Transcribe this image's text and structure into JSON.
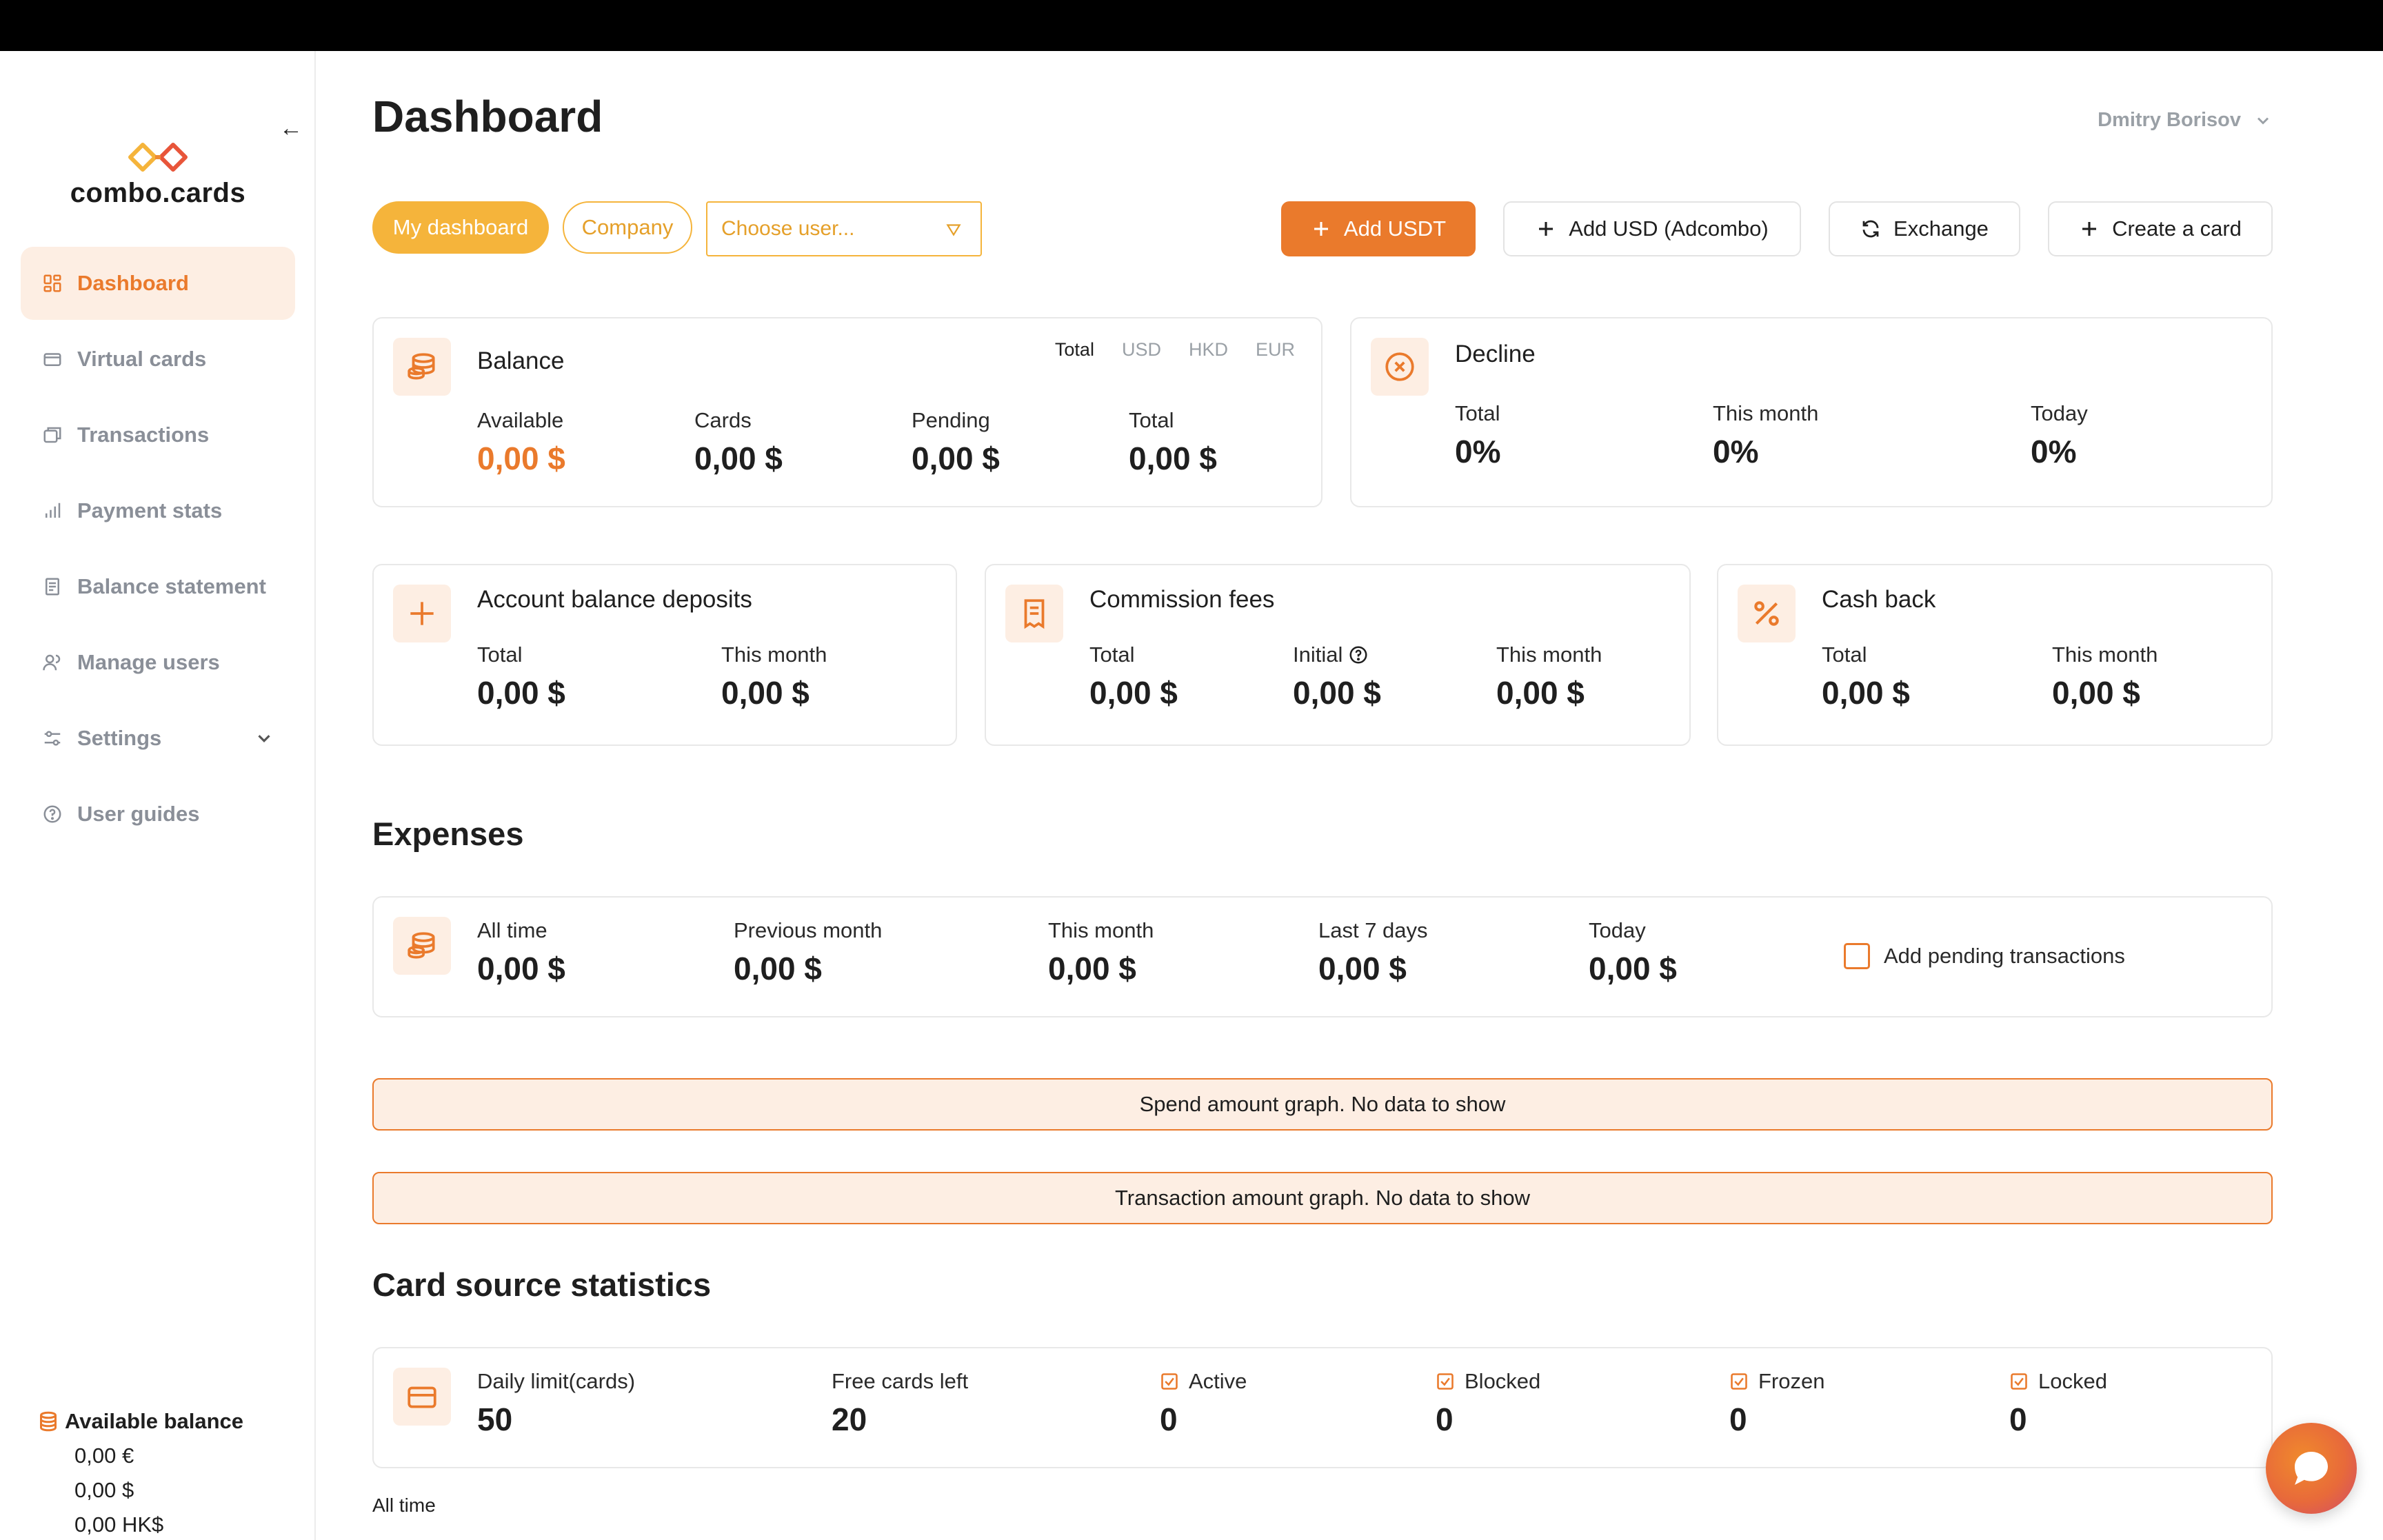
{
  "app": {
    "brand": "combo.cards",
    "page_title": "Dashboard",
    "user_name": "Dmitry Borisov",
    "accent": "#ea7a2c",
    "accent_light": "#fdeee3",
    "accent_yellow": "#f5b43b"
  },
  "sidebar": {
    "items": [
      {
        "label": "Dashboard",
        "icon": "dashboard-icon",
        "active": true
      },
      {
        "label": "Virtual cards",
        "icon": "card-icon"
      },
      {
        "label": "Transactions",
        "icon": "transactions-icon"
      },
      {
        "label": "Payment stats",
        "icon": "stats-icon"
      },
      {
        "label": "Balance statement",
        "icon": "statement-icon"
      },
      {
        "label": "Manage users",
        "icon": "users-icon"
      },
      {
        "label": "Settings",
        "icon": "settings-icon"
      },
      {
        "label": "User guides",
        "icon": "help-icon"
      }
    ],
    "available_balance": {
      "title": "Available balance",
      "rows": [
        "0,00 €",
        "0,00 $",
        "0,00 HK$"
      ]
    }
  },
  "toolbar": {
    "my_dashboard": "My dashboard",
    "company": "Company",
    "choose_user_placeholder": "Choose user...",
    "add_usdt": "Add USDT",
    "add_usd": "Add USD (Adcombo)",
    "exchange": "Exchange",
    "create_card": "Create a card"
  },
  "balance": {
    "title": "Balance",
    "currency_tabs": [
      "Total",
      "USD",
      "HKD",
      "EUR"
    ],
    "available_label": "Available",
    "available_value": "0,00 $",
    "cards_label": "Cards",
    "cards_value": "0,00 $",
    "pending_label": "Pending",
    "pending_value": "0,00 $",
    "total_label": "Total",
    "total_value": "0,00 $"
  },
  "decline": {
    "title": "Decline",
    "total_label": "Total",
    "total_value": "0%",
    "month_label": "This month",
    "month_value": "0%",
    "today_label": "Today",
    "today_value": "0%"
  },
  "deposits": {
    "title": "Account balance deposits",
    "total_label": "Total",
    "total_value": "0,00 $",
    "month_label": "This month",
    "month_value": "0,00 $"
  },
  "commission": {
    "title": "Commission fees",
    "total_label": "Total",
    "total_value": "0,00 $",
    "initial_label": "Initial",
    "initial_value": "0,00 $",
    "month_label": "This month",
    "month_value": "0,00 $"
  },
  "cashback": {
    "title": "Cash back",
    "total_label": "Total",
    "total_value": "0,00 $",
    "month_label": "This month",
    "month_value": "0,00 $"
  },
  "expenses": {
    "section_title": "Expenses",
    "all_time_label": "All time",
    "all_time_value": "0,00 $",
    "prev_month_label": "Previous month",
    "prev_month_value": "0,00 $",
    "this_month_label": "This month",
    "this_month_value": "0,00 $",
    "last7_label": "Last 7 days",
    "last7_value": "0,00 $",
    "today_label": "Today",
    "today_value": "0,00 $",
    "pending_checkbox_label": "Add pending transactions"
  },
  "graphs": {
    "spend": "Spend amount graph. No data to show",
    "transaction": "Transaction amount graph. No data to show"
  },
  "card_source": {
    "section_title": "Card source statistics",
    "daily_limit_label": "Daily limit(cards)",
    "daily_limit_value": "50",
    "free_cards_label": "Free cards left",
    "free_cards_value": "20",
    "active_label": "Active",
    "active_value": "0",
    "blocked_label": "Blocked",
    "blocked_value": "0",
    "frozen_label": "Frozen",
    "frozen_value": "0",
    "locked_label": "Locked",
    "locked_value": "0",
    "footer": "All time"
  }
}
